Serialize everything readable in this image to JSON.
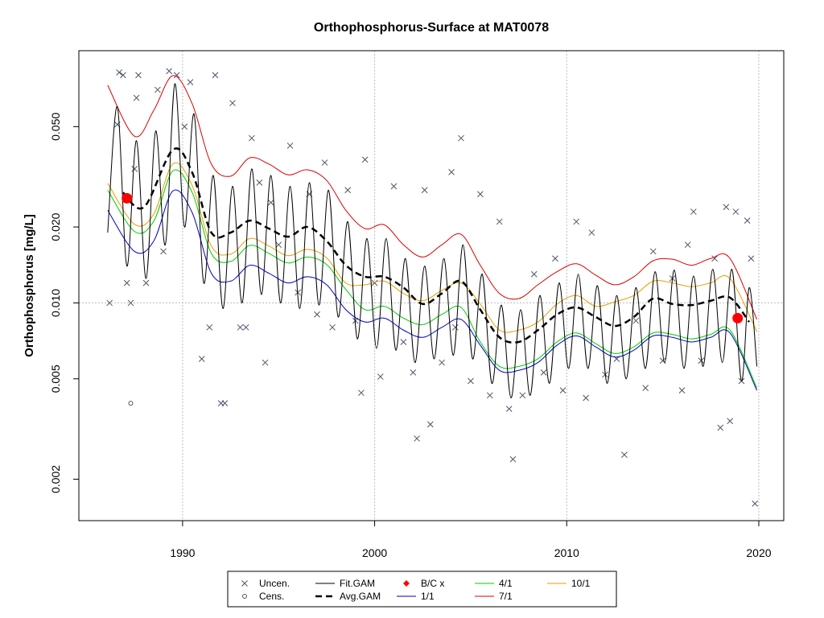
{
  "chart_data": {
    "type": "line",
    "title": "Orthophosphorus-Surface at MAT0078",
    "y_label": "Orthophosphorus [mg/L]",
    "ylog": true,
    "xlim": [
      1984.6,
      2021.3
    ],
    "ylim": [
      0.00137,
      0.1
    ],
    "xticks": [
      1990,
      2000,
      2010,
      2020
    ],
    "yticks": [
      {
        "value": 0.002,
        "label": "0.002"
      },
      {
        "value": 0.005,
        "label": "0.005"
      },
      {
        "value": 0.01,
        "label": "0.010"
      },
      {
        "value": 0.02,
        "label": "0.020"
      },
      {
        "value": 0.05,
        "label": "0.050"
      }
    ],
    "grid_x": true,
    "grid_y_at": [
      0.01
    ],
    "legend": "bottom",
    "series": [
      {
        "name": "Uncen.",
        "color": "#4a5568",
        "kind": "cross",
        "x": [
          1986.2,
          1986.6,
          1986.7,
          1986.9,
          1987.1,
          1987.3,
          1987.5,
          1987.6,
          1987.7,
          1988.1,
          1988.7,
          1989.0,
          1989.3,
          1989.7,
          1990.1,
          1990.4,
          1991.0,
          1991.4,
          1991.7,
          1992.0,
          1992.2,
          1992.6,
          1993.0,
          1993.3,
          1993.6,
          1994.0,
          1994.3,
          1994.6,
          1995.0,
          1995.6,
          1996.0,
          1996.6,
          1997.0,
          1997.4,
          1997.8,
          1998.6,
          1999.0,
          1999.3,
          1999.5,
          2000.0,
          2000.3,
          2001.0,
          2001.5,
          2002.0,
          2002.2,
          2002.6,
          2002.9,
          2003.5,
          2004.0,
          2004.2,
          2004.5,
          2005.0,
          2005.5,
          2006.0,
          2006.5,
          2007.0,
          2007.2,
          2007.7,
          2008.3,
          2008.8,
          2009.4,
          2009.8,
          2010.5,
          2011.0,
          2011.3,
          2012.0,
          2012.6,
          2013.0,
          2013.6,
          2014.1,
          2014.5,
          2015.0,
          2015.5,
          2016.0,
          2016.3,
          2016.6,
          2017.0,
          2017.7,
          2018.0,
          2018.3,
          2018.5,
          2018.8,
          2019.1,
          2019.4,
          2019.6,
          2019.8
        ],
        "values": [
          0.01,
          0.051,
          0.082,
          0.08,
          0.012,
          0.01,
          0.034,
          0.065,
          0.08,
          0.012,
          0.07,
          0.016,
          0.083,
          0.08,
          0.05,
          0.075,
          0.006,
          0.008,
          0.08,
          0.004,
          0.004,
          0.062,
          0.008,
          0.008,
          0.045,
          0.03,
          0.0058,
          0.025,
          0.017,
          0.042,
          0.011,
          0.027,
          0.009,
          0.036,
          0.008,
          0.028,
          0.0085,
          0.0044,
          0.037,
          0.012,
          0.0051,
          0.029,
          0.007,
          0.0053,
          0.0029,
          0.028,
          0.0033,
          0.0058,
          0.033,
          0.008,
          0.045,
          0.0049,
          0.027,
          0.0043,
          0.021,
          0.0038,
          0.0024,
          0.0043,
          0.013,
          0.0053,
          0.015,
          0.0045,
          0.021,
          0.0042,
          0.019,
          0.0052,
          0.006,
          0.0025,
          0.0085,
          0.0046,
          0.016,
          0.0059,
          0.0125,
          0.0045,
          0.017,
          0.023,
          0.0059,
          0.015,
          0.0032,
          0.024,
          0.0034,
          0.023,
          0.0049,
          0.0212,
          0.015,
          0.0016
        ]
      },
      {
        "name": "Cens.",
        "color": "#4a5568",
        "kind": "circle",
        "x": [
          1987.3
        ],
        "values": [
          0.004
        ]
      },
      {
        "name": "Fit.GAM",
        "color": "#000000",
        "kind": "line",
        "x": [
          1986.1,
          1986.6,
          1987.1,
          1987.6,
          1988.1,
          1988.6,
          1989.1,
          1989.6,
          1990.1,
          1990.6,
          1991.1,
          1991.6,
          1992.1,
          1992.6,
          1993.1,
          1993.6,
          1994.1,
          1994.6,
          1995.1,
          1995.6,
          1996.1,
          1996.6,
          1997.1,
          1997.6,
          1998.1,
          1998.6,
          1999.1,
          1999.6,
          2000.1,
          2000.6,
          2001.1,
          2001.6,
          2002.1,
          2002.6,
          2003.1,
          2003.6,
          2004.1,
          2004.6,
          2005.1,
          2005.6,
          2006.1,
          2006.6,
          2007.1,
          2007.6,
          2008.1,
          2008.6,
          2009.1,
          2009.6,
          2010.1,
          2010.6,
          2011.1,
          2011.6,
          2012.1,
          2012.6,
          2013.1,
          2013.6,
          2014.1,
          2014.6,
          2015.1,
          2015.6,
          2016.1,
          2016.6,
          2017.1,
          2017.6,
          2018.1,
          2018.6,
          2019.1,
          2019.5,
          2019.9
        ],
        "values": [
          0.019,
          0.06,
          0.014,
          0.044,
          0.0125,
          0.048,
          0.017,
          0.074,
          0.02,
          0.056,
          0.012,
          0.032,
          0.0095,
          0.029,
          0.01,
          0.034,
          0.0108,
          0.032,
          0.01,
          0.029,
          0.0095,
          0.03,
          0.0098,
          0.028,
          0.0088,
          0.021,
          0.0072,
          0.018,
          0.0066,
          0.018,
          0.0065,
          0.015,
          0.0058,
          0.014,
          0.006,
          0.015,
          0.0062,
          0.017,
          0.006,
          0.013,
          0.0048,
          0.0098,
          0.0042,
          0.0094,
          0.0043,
          0.0107,
          0.0048,
          0.012,
          0.0055,
          0.013,
          0.0055,
          0.0117,
          0.0048,
          0.0107,
          0.005,
          0.0115,
          0.0055,
          0.0133,
          0.0058,
          0.0135,
          0.0055,
          0.0128,
          0.0056,
          0.0136,
          0.0058,
          0.0136,
          0.0049,
          0.0115,
          0.0056
        ]
      },
      {
        "name": "Avg.GAM",
        "color": "#000000",
        "kind": "dashed",
        "x": [
          1986.9,
          1988,
          1989.5,
          1990.5,
          1991.5,
          1992.5,
          1993.5,
          1994.5,
          1995.5,
          1996.5,
          1997.5,
          1998.5,
          1999.5,
          2000.5,
          2001.5,
          2002.5,
          2003.5,
          2004.5,
          2005.5,
          2006.5,
          2007.5,
          2008.5,
          2009.5,
          2010.5,
          2011.5,
          2012.5,
          2013.5,
          2014.5,
          2015.5,
          2016.5,
          2017.5,
          2018.5,
          2019.5
        ],
        "values": [
          0.0274,
          0.024,
          0.0405,
          0.0329,
          0.019,
          0.019,
          0.0212,
          0.0197,
          0.0183,
          0.02,
          0.0176,
          0.0141,
          0.0127,
          0.0127,
          0.0115,
          0.0099,
          0.0109,
          0.0122,
          0.0094,
          0.0073,
          0.007,
          0.0078,
          0.009,
          0.0096,
          0.0088,
          0.0081,
          0.0088,
          0.0104,
          0.0099,
          0.0098,
          0.0102,
          0.0105,
          0.0084
        ]
      },
      {
        "name": "B/C x",
        "color": "#ff0000",
        "kind": "dot",
        "x": [
          1987.1,
          2018.9
        ],
        "values": [
          0.026,
          0.0087
        ]
      },
      {
        "name": "1/1",
        "color": "#0000cc",
        "kind": "line",
        "x": [
          1986.1,
          1987.5,
          1988.5,
          1989.5,
          1990.5,
          1991.5,
          1992.5,
          1993.5,
          1994.5,
          1995.5,
          1996.5,
          1997.5,
          1998.5,
          1999.5,
          2000.5,
          2001.5,
          2002.5,
          2003.5,
          2004.5,
          2005.5,
          2006.5,
          2007.5,
          2008.5,
          2009.5,
          2010.5,
          2011.5,
          2012.5,
          2013.5,
          2014.5,
          2015.5,
          2016.5,
          2017.5,
          2018.5,
          2019.9
        ],
        "values": [
          0.0233,
          0.016,
          0.0176,
          0.0278,
          0.0228,
          0.0131,
          0.0122,
          0.0141,
          0.0131,
          0.012,
          0.0127,
          0.0118,
          0.0094,
          0.0084,
          0.0087,
          0.0078,
          0.0073,
          0.008,
          0.0086,
          0.0068,
          0.0054,
          0.0054,
          0.0058,
          0.0068,
          0.0074,
          0.0067,
          0.0061,
          0.0065,
          0.0074,
          0.0073,
          0.007,
          0.0073,
          0.0076,
          0.0045
        ]
      },
      {
        "name": "4/1",
        "color": "#00cc00",
        "kind": "line",
        "x": [
          1986.1,
          1987.5,
          1988.5,
          1989.5,
          1990.5,
          1991.5,
          1992.5,
          1993.5,
          1994.5,
          1995.5,
          1996.5,
          1997.5,
          1998.5,
          1999.5,
          2000.5,
          2001.5,
          2002.5,
          2003.5,
          2004.5,
          2005.5,
          2006.5,
          2007.5,
          2008.5,
          2009.5,
          2010.5,
          2011.5,
          2012.5,
          2013.5,
          2014.5,
          2015.5,
          2016.5,
          2017.5,
          2018.5,
          2019.9
        ],
        "values": [
          0.028,
          0.0192,
          0.0211,
          0.0334,
          0.0274,
          0.0157,
          0.0146,
          0.0169,
          0.0157,
          0.0144,
          0.0152,
          0.0142,
          0.0113,
          0.0094,
          0.0097,
          0.0087,
          0.0082,
          0.009,
          0.0096,
          0.007,
          0.0056,
          0.0056,
          0.006,
          0.007,
          0.0076,
          0.0069,
          0.0063,
          0.0067,
          0.0076,
          0.0075,
          0.0072,
          0.0075,
          0.0078,
          0.0046
        ]
      },
      {
        "name": "7/1",
        "color": "#dd0000",
        "kind": "line",
        "x": [
          1986.1,
          1987.5,
          1988.5,
          1989.5,
          1990.5,
          1991.5,
          1992.5,
          1993.5,
          1994.5,
          1995.5,
          1996.5,
          1997.5,
          1998.5,
          1999.5,
          2000.5,
          2001.5,
          2002.5,
          2003.5,
          2004.5,
          2005.5,
          2006.5,
          2007.5,
          2008.5,
          2009.5,
          2010.5,
          2011.5,
          2012.5,
          2013.5,
          2014.5,
          2015.5,
          2016.5,
          2017.5,
          2018.5,
          2019.9
        ],
        "values": [
          0.073,
          0.0458,
          0.058,
          0.0797,
          0.0616,
          0.0355,
          0.0318,
          0.0376,
          0.0355,
          0.0322,
          0.0337,
          0.0306,
          0.0233,
          0.0197,
          0.0204,
          0.017,
          0.0152,
          0.017,
          0.0187,
          0.0141,
          0.0109,
          0.0104,
          0.0118,
          0.0133,
          0.0143,
          0.0129,
          0.0118,
          0.0127,
          0.0147,
          0.0149,
          0.0141,
          0.015,
          0.015,
          0.0086
        ]
      },
      {
        "name": "10/1",
        "color": "#e69f00",
        "kind": "line",
        "x": [
          1986.1,
          1987.5,
          1988.5,
          1989.5,
          1990.5,
          1991.5,
          1992.5,
          1993.5,
          1994.5,
          1995.5,
          1996.5,
          1997.5,
          1998.5,
          1999.5,
          2000.5,
          2001.5,
          2002.5,
          2003.5,
          2004.5,
          2005.5,
          2006.5,
          2007.5,
          2008.5,
          2009.5,
          2010.5,
          2011.5,
          2012.5,
          2013.5,
          2014.5,
          2015.5,
          2016.5,
          2017.5,
          2018.5,
          2019.9
        ],
        "values": [
          0.0298,
          0.0205,
          0.0225,
          0.0356,
          0.0292,
          0.0168,
          0.0156,
          0.018,
          0.0168,
          0.0154,
          0.0163,
          0.0151,
          0.012,
          0.0118,
          0.0122,
          0.0109,
          0.0102,
          0.0112,
          0.012,
          0.0099,
          0.0078,
          0.0078,
          0.0084,
          0.0099,
          0.0107,
          0.0097,
          0.0101,
          0.0107,
          0.0122,
          0.012,
          0.0116,
          0.012,
          0.0125,
          0.0077
        ]
      }
    ]
  }
}
